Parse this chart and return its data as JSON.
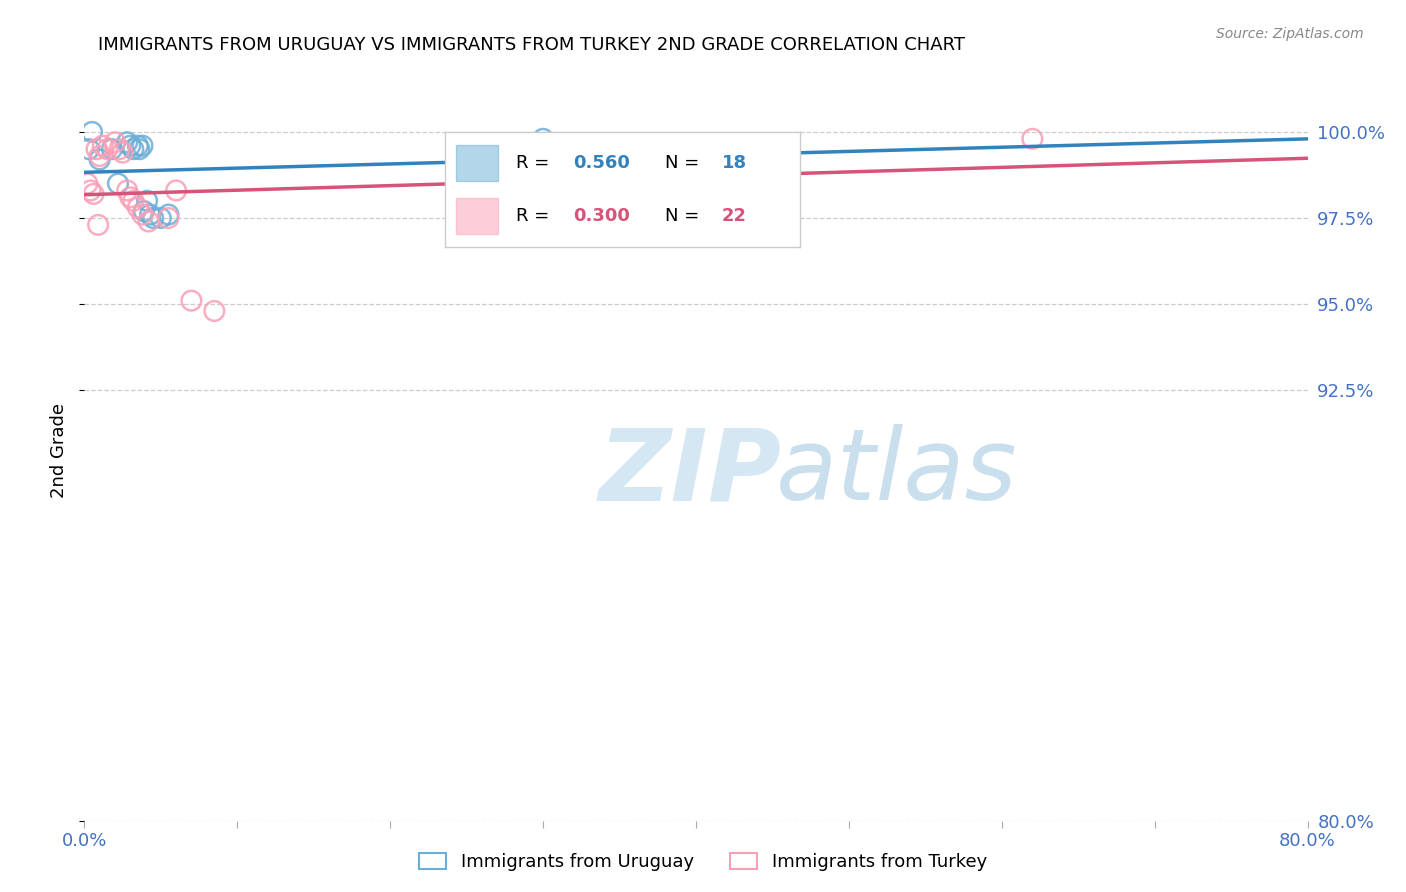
{
  "title": "IMMIGRANTS FROM URUGUAY VS IMMIGRANTS FROM TURKEY 2ND GRADE CORRELATION CHART",
  "source": "Source: ZipAtlas.com",
  "ylabel": "2nd Grade",
  "y_min": 80.0,
  "y_max": 101.5,
  "x_min": 0.0,
  "x_max": 80.0,
  "ytick_vals": [
    80.0,
    92.5,
    95.0,
    97.5,
    100.0
  ],
  "xtick_positions": [
    0,
    10,
    20,
    30,
    40,
    50,
    60,
    70,
    80
  ],
  "color_uruguay": "#6baed6",
  "color_turkey": "#fa9fb5",
  "color_trendline_uruguay": "#3182bd",
  "color_trendline_turkey": "#d6537a",
  "color_axis_labels": "#4472c4",
  "color_grid": "#cccccc",
  "legend_r_uruguay": "0.560",
  "legend_n_uruguay": "18",
  "legend_r_turkey": "0.300",
  "legend_n_turkey": "22",
  "uruguay_x": [
    0.3,
    0.5,
    1.0,
    1.8,
    2.2,
    2.8,
    3.0,
    3.2,
    3.5,
    3.6,
    3.8,
    3.9,
    4.1,
    4.3,
    4.5,
    5.0,
    5.5,
    30.0
  ],
  "uruguay_y": [
    99.5,
    100.0,
    99.2,
    99.5,
    98.5,
    99.7,
    99.6,
    99.5,
    99.6,
    99.5,
    99.6,
    97.7,
    98.0,
    97.6,
    97.5,
    97.5,
    97.6,
    99.8
  ],
  "turkey_x": [
    0.2,
    0.4,
    0.6,
    0.8,
    1.0,
    1.2,
    1.5,
    2.0,
    2.3,
    2.5,
    2.8,
    3.0,
    3.2,
    3.5,
    3.8,
    4.2,
    5.5,
    6.0,
    7.0,
    8.5,
    62.0,
    0.9
  ],
  "turkey_y": [
    98.5,
    98.3,
    98.2,
    99.5,
    99.3,
    99.6,
    99.5,
    99.7,
    99.5,
    99.4,
    98.3,
    98.1,
    98.0,
    97.8,
    97.6,
    97.4,
    97.5,
    98.3,
    95.1,
    94.8,
    99.8,
    97.3
  ]
}
